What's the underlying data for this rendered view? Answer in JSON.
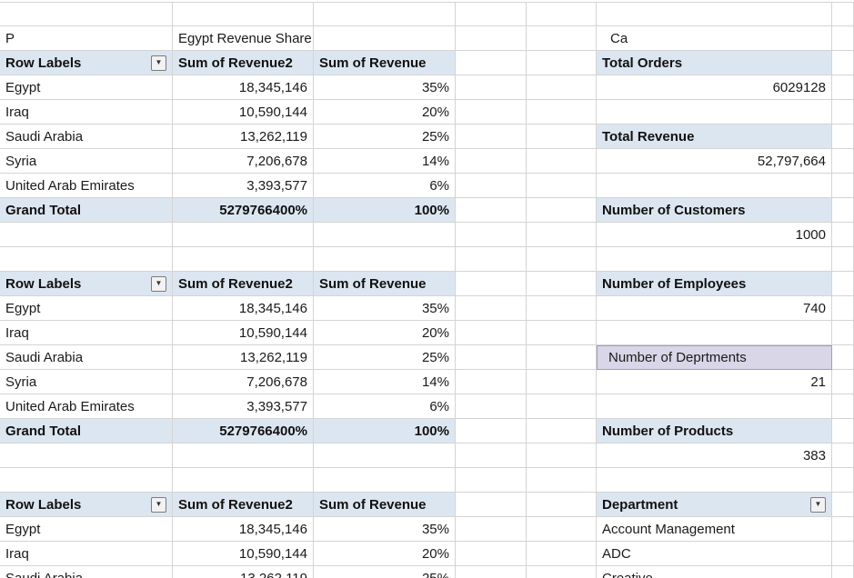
{
  "titles": {
    "p": "P",
    "share": "Egypt Revenue Share",
    "ca": "Ca"
  },
  "pivot": {
    "headers": [
      "Row Labels",
      "Sum of Revenue2",
      "Sum of Revenue"
    ],
    "rows": [
      [
        "Egypt",
        "18,345,146",
        "35%"
      ],
      [
        "Iraq",
        "10,590,144",
        "20%"
      ],
      [
        "Saudi Arabia",
        "13,262,119",
        "25%"
      ],
      [
        "Syria",
        "7,206,678",
        "14%"
      ],
      [
        "United Arab Emirates",
        "3,393,577",
        "6%"
      ]
    ],
    "grand_total": [
      "Grand Total",
      "5279766400%",
      "100%"
    ]
  },
  "cards": [
    {
      "label": "Total Orders",
      "value": "6029128"
    },
    {
      "label": "Total Revenue",
      "value": "52,797,664"
    },
    {
      "label": "Number of Customers",
      "value": "1000"
    },
    {
      "label": "Number of Employees",
      "value": "740"
    },
    {
      "label": "Number of Deprtments",
      "value": "21"
    },
    {
      "label": "Number of Products",
      "value": "383"
    }
  ],
  "department": {
    "header": "Department",
    "items": [
      "Account Management",
      "ADC",
      "Creative"
    ]
  },
  "icons": {
    "filter_dropdown": "▼"
  },
  "colors": {
    "header_bg": "#dce6f1",
    "deprtments_bg": "#d9d6e8",
    "gridline": "#d4d4d4"
  }
}
